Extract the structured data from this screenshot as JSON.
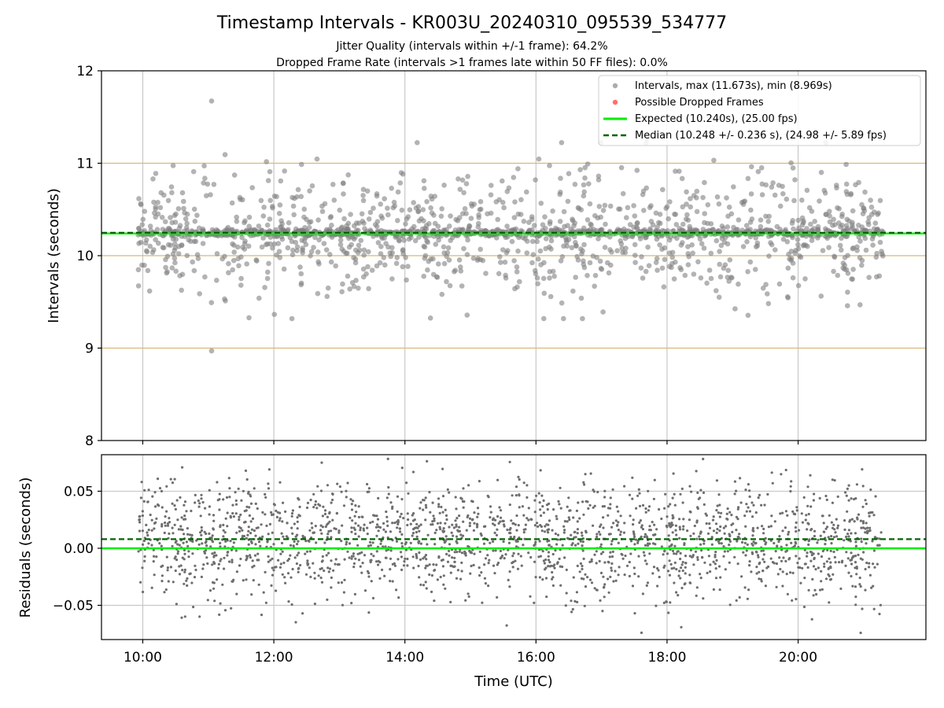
{
  "title": "Timestamp Intervals - KR003U_20240310_095539_534777",
  "subtitle_1": "Jitter Quality (intervals within +/-1 frame): 64.2%",
  "subtitle_2": "Dropped Frame Rate (intervals >1 frames late within 50 FF files): 0.0%",
  "colors": {
    "points": "#808080",
    "dropped": "#ff4040",
    "expected": "#00ee00",
    "median": "#006400",
    "hline": "#dab878",
    "grid": "#c8c8c8"
  },
  "chart_data": [
    {
      "type": "scatter",
      "name": "intervals",
      "ylabel": "Intervals (seconds)",
      "ylim": [
        8,
        12
      ],
      "yticks": [
        "8",
        "9",
        "10",
        "11",
        "12"
      ],
      "xlim_hours": [
        9.37,
        21.95
      ],
      "horizontal_lines": [
        9,
        10,
        11
      ],
      "legend": {
        "position": "top-right",
        "entries": [
          {
            "label": "Intervals, max (11.673s), min (8.969s)",
            "marker": "point",
            "color": "#808080"
          },
          {
            "label": "Possible Dropped Frames",
            "marker": "point",
            "color": "#ff4040"
          },
          {
            "label": "Expected (10.240s), (25.00 fps)",
            "marker": "line",
            "color": "#00ee00"
          },
          {
            "label": "Median (10.248 +/- 0.236 s), (24.98 +/- 5.89 fps)",
            "marker": "dashed",
            "color": "#006400"
          }
        ]
      },
      "expected": 10.24,
      "median": 10.248,
      "median_std": 0.236,
      "max": 11.673,
      "min": 8.969,
      "time_range_hours": [
        9.93,
        21.3
      ],
      "series": [
        {
          "name": "Intervals",
          "count": 1950,
          "center": 10.245,
          "spread": 0.236
        },
        {
          "name": "Possible Dropped Frames",
          "count": 0
        }
      ]
    },
    {
      "type": "scatter",
      "name": "residuals",
      "ylabel": "Residuals (seconds)",
      "xlabel": "Time (UTC)",
      "ylim": [
        -0.08,
        0.082
      ],
      "yticks": [
        {
          "v": 0.05,
          "label": "0.05"
        },
        {
          "v": 0.0,
          "label": "0.00"
        },
        {
          "v": -0.05,
          "label": "−0.05"
        }
      ],
      "xticks": [
        {
          "h": 10,
          "label": "10:00"
        },
        {
          "h": 12,
          "label": "12:00"
        },
        {
          "h": 14,
          "label": "14:00"
        },
        {
          "h": 16,
          "label": "16:00"
        },
        {
          "h": 18,
          "label": "18:00"
        },
        {
          "h": 20,
          "label": "20:00"
        }
      ],
      "expected_residual": 0.0,
      "median_residual": 0.008,
      "series": [
        {
          "name": "Residuals",
          "count": 2100,
          "center": 0.008,
          "spread": 0.026
        }
      ]
    }
  ]
}
